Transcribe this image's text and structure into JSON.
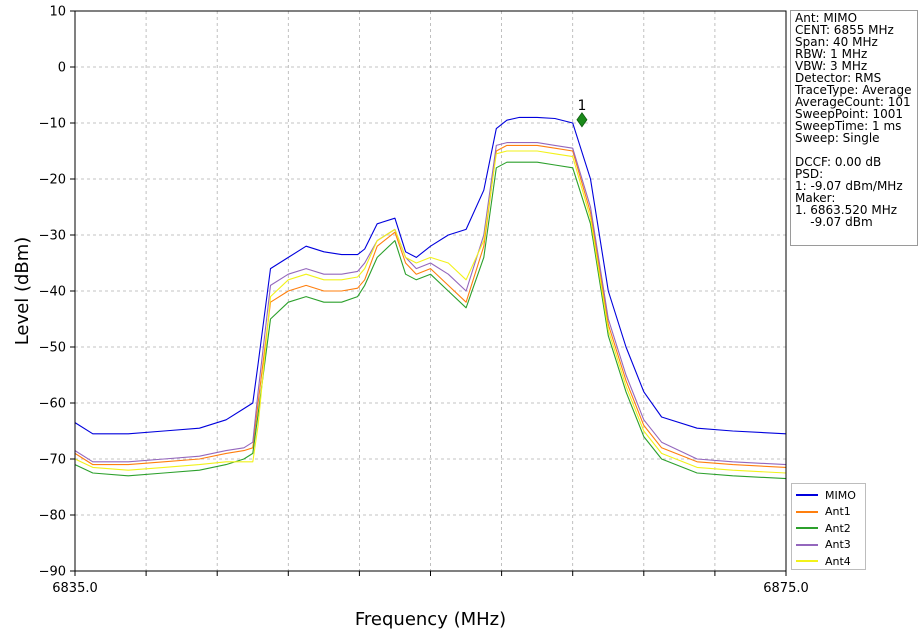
{
  "chart_data": {
    "type": "line",
    "xlabel": "Frequency (MHz)",
    "ylabel": "Level (dBm)",
    "xlim": [
      6835.0,
      6875.0
    ],
    "ylim": [
      -90,
      10
    ],
    "x_ticks": [
      6835.0,
      6839.0,
      6843.0,
      6847.0,
      6851.0,
      6855.0,
      6859.0,
      6863.0,
      6867.0,
      6871.0,
      6875.0
    ],
    "x_tick_labels": [
      "6835.0",
      "",
      "",
      "",
      "",
      "",
      "",
      "",
      "",
      "",
      "6875.0"
    ],
    "y_ticks": [
      10,
      0,
      -10,
      -20,
      -30,
      -40,
      -50,
      -60,
      -70,
      -80,
      -90
    ],
    "y_tick_labels": [
      "10",
      "0",
      "−10",
      "−20",
      "−30",
      "−40",
      "−50",
      "−60",
      "−70",
      "−80",
      "−90"
    ],
    "grid": true,
    "legend_position": "lower-right, outside plot",
    "series": [
      {
        "name": "MIMO",
        "color": "#0000dd",
        "x": [
          6835,
          6836,
          6838,
          6840,
          6842,
          6843.5,
          6844.5,
          6845,
          6845.3,
          6846,
          6847,
          6848,
          6849,
          6850,
          6850.9,
          6851.3,
          6852,
          6853,
          6853.6,
          6854.2,
          6855,
          6856,
          6857,
          6858,
          6858.7,
          6859.3,
          6860,
          6861,
          6862,
          6863,
          6864,
          6865,
          6866,
          6867,
          6868,
          6870,
          6872,
          6875
        ],
        "y": [
          -63.5,
          -65.5,
          -65.5,
          -65,
          -64.5,
          -63,
          -61,
          -60,
          -53,
          -36,
          -34,
          -32,
          -33,
          -33.5,
          -33.5,
          -32.5,
          -28,
          -27,
          -33,
          -34,
          -32,
          -30,
          -29,
          -22,
          -11,
          -9.5,
          -9,
          -9,
          -9.2,
          -10,
          -20,
          -40,
          -50,
          -58,
          -62.5,
          -64.5,
          -65,
          -65.5
        ]
      },
      {
        "name": "Ant1",
        "color": "#ff7f0e",
        "x": [
          6835,
          6836,
          6838,
          6840,
          6842,
          6843.5,
          6844.5,
          6845,
          6845.3,
          6846,
          6847,
          6848,
          6849,
          6850,
          6850.9,
          6851.3,
          6852,
          6853,
          6853.6,
          6854.2,
          6855,
          6856,
          6857,
          6858,
          6858.7,
          6859.3,
          6860,
          6861,
          6862,
          6863,
          6864,
          6865,
          6866,
          6867,
          6868,
          6870,
          6872,
          6875
        ],
        "y": [
          -69,
          -71,
          -71,
          -70.5,
          -70,
          -69,
          -68.5,
          -68,
          -60,
          -42,
          -40,
          -39,
          -40,
          -40,
          -39.5,
          -38,
          -32,
          -29.5,
          -35,
          -37,
          -36,
          -39,
          -42,
          -32,
          -15,
          -14,
          -14,
          -14,
          -14.5,
          -15,
          -26,
          -46,
          -56,
          -64,
          -68,
          -70.5,
          -71,
          -71.5
        ]
      },
      {
        "name": "Ant2",
        "color": "#2ca02c",
        "x": [
          6835,
          6836,
          6838,
          6840,
          6842,
          6843.5,
          6844.5,
          6845,
          6845.3,
          6846,
          6847,
          6848,
          6849,
          6850,
          6850.9,
          6851.3,
          6852,
          6853,
          6853.6,
          6854.2,
          6855,
          6856,
          6857,
          6858,
          6858.7,
          6859.3,
          6860,
          6861,
          6862,
          6863,
          6864,
          6865,
          6866,
          6867,
          6868,
          6870,
          6872,
          6875
        ],
        "y": [
          -71,
          -72.5,
          -73,
          -72.5,
          -72,
          -71,
          -70,
          -69,
          -62,
          -45,
          -42,
          -41,
          -42,
          -42,
          -41,
          -39,
          -34,
          -31,
          -37,
          -38,
          -37,
          -40,
          -43,
          -34,
          -18,
          -17,
          -17,
          -17,
          -17.5,
          -18,
          -28,
          -48,
          -58,
          -66,
          -70,
          -72.5,
          -73,
          -73.5
        ]
      },
      {
        "name": "Ant3",
        "color": "#9467bd",
        "x": [
          6835,
          6836,
          6838,
          6840,
          6842,
          6843.5,
          6844.5,
          6845,
          6845.3,
          6846,
          6847,
          6848,
          6849,
          6850,
          6850.9,
          6851.3,
          6852,
          6853,
          6853.6,
          6854.2,
          6855,
          6856,
          6857,
          6858,
          6858.7,
          6859.3,
          6860,
          6861,
          6862,
          6863,
          6864,
          6865,
          6866,
          6867,
          6868,
          6870,
          6872,
          6875
        ],
        "y": [
          -68.5,
          -70.5,
          -70.5,
          -70,
          -69.5,
          -68.5,
          -68,
          -67,
          -58,
          -39,
          -37,
          -36,
          -37,
          -37,
          -36.5,
          -35,
          -31,
          -29,
          -34,
          -36,
          -35,
          -37,
          -40,
          -30,
          -14,
          -13.5,
          -13.5,
          -13.5,
          -14,
          -14.5,
          -25,
          -45,
          -55,
          -63,
          -67,
          -70,
          -70.5,
          -71
        ]
      },
      {
        "name": "Ant4",
        "color": "#f2f21a",
        "x": [
          6835,
          6836,
          6838,
          6840,
          6842,
          6843.5,
          6844.5,
          6845,
          6845.3,
          6846,
          6847,
          6848,
          6849,
          6850,
          6850.9,
          6851.3,
          6852,
          6853,
          6853.6,
          6854.2,
          6855,
          6856,
          6857,
          6858,
          6858.7,
          6859.3,
          6860,
          6861,
          6862,
          6863,
          6864,
          6865,
          6866,
          6867,
          6868,
          6870,
          6872,
          6875
        ],
        "y": [
          -70,
          -71.5,
          -72,
          -71.5,
          -71,
          -70.5,
          -70.5,
          -70.5,
          -64,
          -41,
          -38,
          -37,
          -38,
          -38,
          -37.5,
          -36,
          -31,
          -29,
          -34,
          -35,
          -34,
          -35,
          -38,
          -31,
          -15.5,
          -15,
          -15,
          -15,
          -15.5,
          -16,
          -27,
          -47,
          -57,
          -65,
          -69,
          -71.5,
          -72,
          -72.5
        ]
      }
    ],
    "marker": {
      "label": "1",
      "x": 6863.52,
      "y": -9.07,
      "color": "#1a8a1a"
    }
  },
  "info_box": {
    "lines": [
      "Ant: MIMO",
      "CENT: 6855 MHz",
      "Span: 40 MHz",
      "RBW: 1 MHz",
      "VBW: 3 MHz",
      "Detector: RMS",
      "TraceType: Average",
      "AverageCount: 101",
      "SweepPoint: 1001",
      "SweepTime: 1 ms",
      "Sweep: Single",
      "",
      "DCCF: 0.00 dB",
      "PSD:",
      "1: -9.07 dBm/MHz",
      "Maker:",
      "1. 6863.520 MHz",
      "    -9.07 dBm"
    ]
  }
}
